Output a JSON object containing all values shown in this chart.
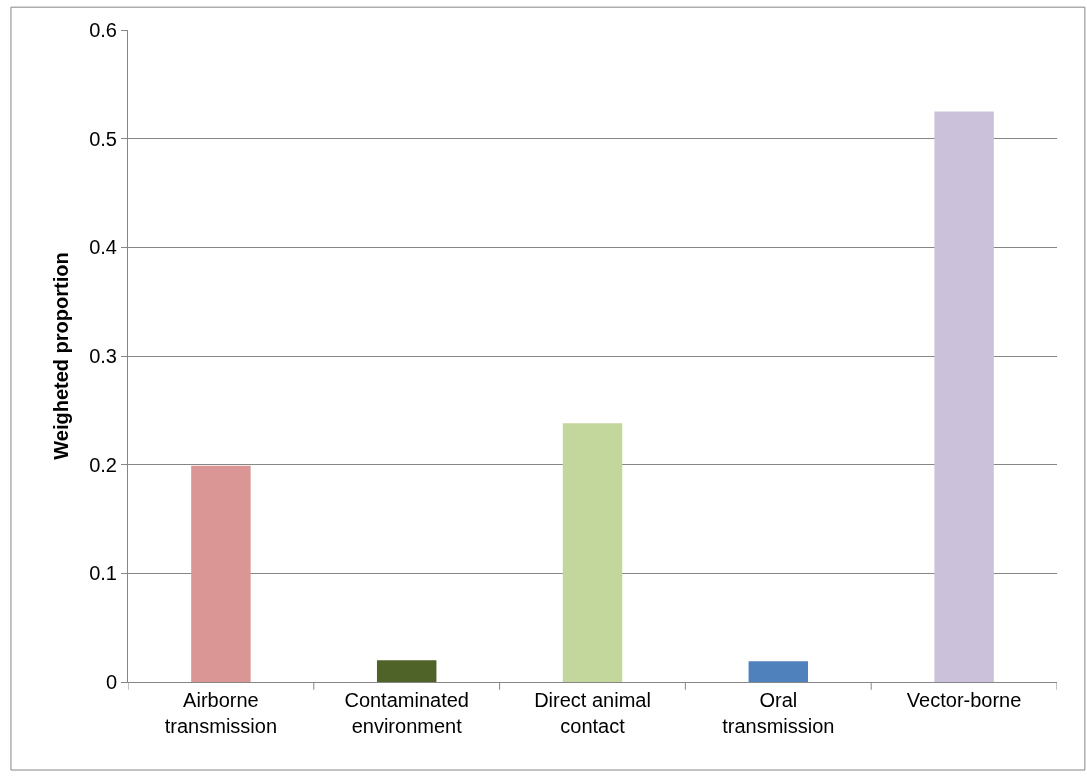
{
  "chart_data": {
    "type": "bar",
    "ylabel": "Weigheted proportion",
    "categories": [
      "Airborne transmission",
      "Contaminated environment",
      "Direct animal contact",
      "Oral transmission",
      "Vector-borne"
    ],
    "values": [
      0.199,
      0.02,
      0.238,
      0.019,
      0.525
    ],
    "colors": [
      "#d99694",
      "#4f6228",
      "#c3d69b",
      "#4f81bd",
      "#ccc1da"
    ],
    "ylim": [
      0,
      0.6
    ],
    "yticks": [
      0,
      0.1,
      0.2,
      0.3,
      0.4,
      0.5,
      0.6
    ],
    "grid": "y",
    "legend": false
  }
}
